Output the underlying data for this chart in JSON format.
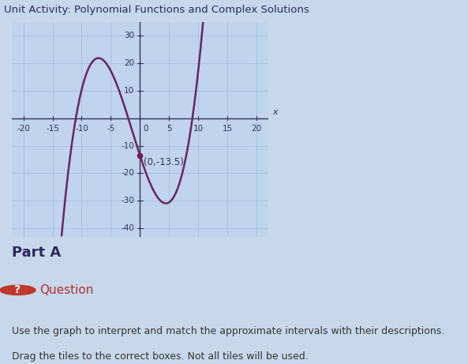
{
  "title": "Unit Activity: Polynomial Functions and Complex Solutions",
  "title_fontsize": 9.5,
  "title_color": "#2a2a5a",
  "title_bg": "#b8c8e8",
  "graph_bg": "#c8d8ec",
  "plot_bg": "#c0d4ec",
  "grid_color": "#a8c0dc",
  "curve_color": "#6b2560",
  "curve_linewidth": 1.8,
  "annotation_text": "(0,-13.5)",
  "annotation_dot_color": "#7a1a50",
  "annotation_fontsize": 8.5,
  "xlim": [
    -22,
    22
  ],
  "ylim": [
    -43,
    35
  ],
  "xticks": [
    -20,
    -15,
    -10,
    -5,
    0,
    5,
    10,
    15,
    20
  ],
  "yticks": [
    -40,
    -30,
    -20,
    -10,
    0,
    10,
    20,
    30
  ],
  "xlabel": "x",
  "tick_fontsize": 7.5,
  "part_a_text": "Part A",
  "part_a_fontsize": 13,
  "question_fontsize": 11,
  "body_text1": "Use the graph to interpret and match the approximate intervals with their descriptions.",
  "body_text2": "Drag the tiles to the correct boxes. Not all tiles will be used.",
  "body_fontsize": 9,
  "bottom_bg": "#e4ddd4",
  "curve_roots": [
    -11,
    -2,
    9
  ],
  "curve_y0": -13.5,
  "arrow_color": "#333355",
  "axis_color": "#333355"
}
